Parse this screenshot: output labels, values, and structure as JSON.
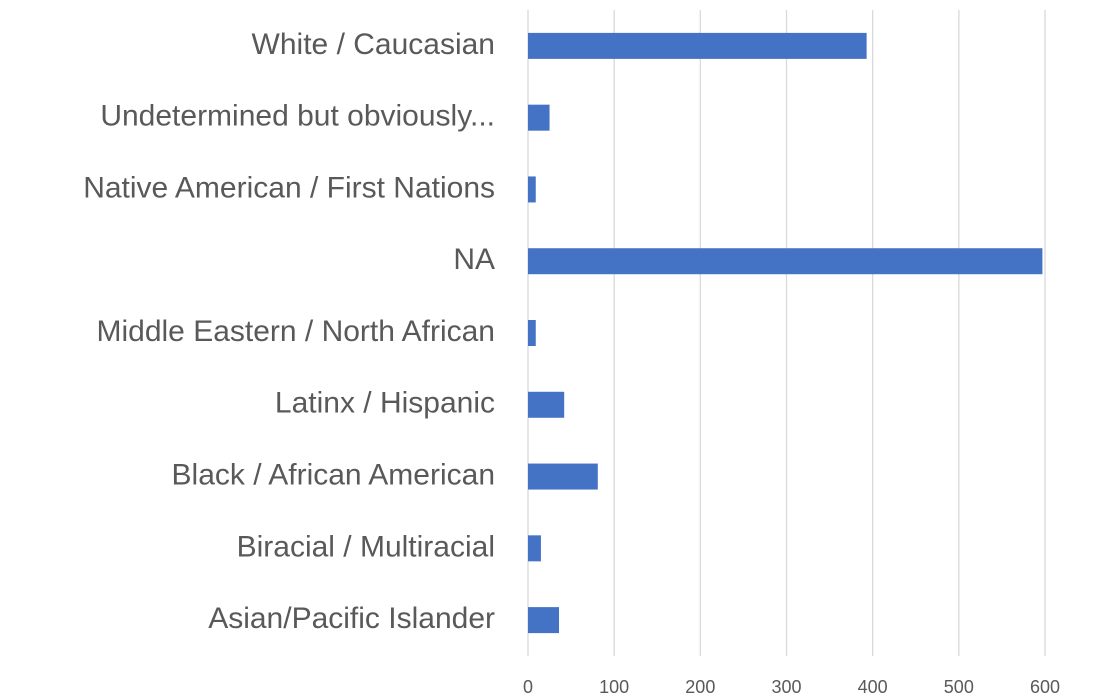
{
  "chart_data": {
    "type": "bar",
    "orientation": "horizontal",
    "categories": [
      "White / Caucasian",
      "Undetermined but obviously...",
      "Native American / First Nations",
      "NA",
      "Middle Eastern / North African",
      "Latinx / Hispanic",
      "Black / African American",
      "Biracial / Multiracial",
      "Asian/Pacific Islander"
    ],
    "values": [
      393,
      25,
      9,
      597,
      9,
      42,
      81,
      15,
      36
    ],
    "color": "#4472c4",
    "xlim": [
      0,
      600
    ],
    "xticks": [
      0,
      100,
      200,
      300,
      400,
      500,
      600
    ],
    "grid": true
  }
}
